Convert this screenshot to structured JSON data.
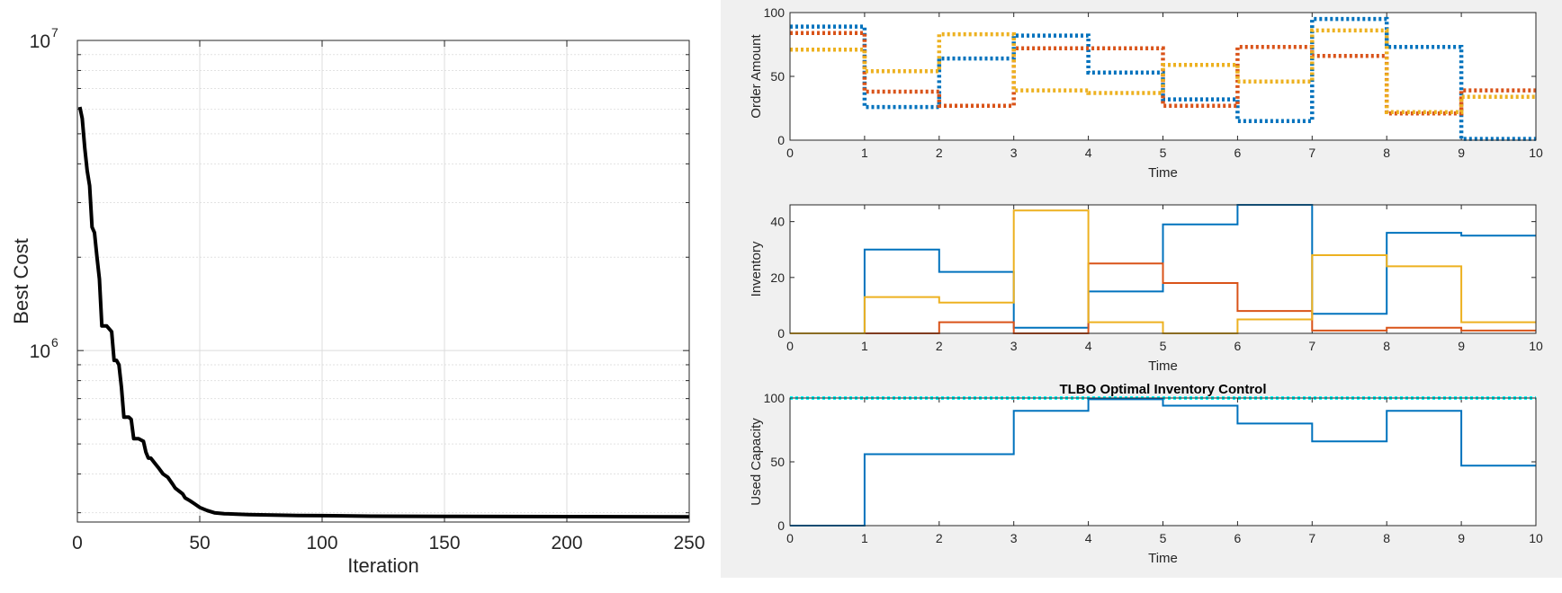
{
  "colors": {
    "blue": "#0072BD",
    "orange": "#D95319",
    "yellow": "#EDB120",
    "cyan": "#00FFFF",
    "black": "#000000",
    "figure_background": "#f0f0f0"
  },
  "chart_data": [
    {
      "type": "line",
      "title": "",
      "xlabel": "Iteration",
      "ylabel": "Best Cost",
      "xlim": [
        0,
        250
      ],
      "ylim": [
        280000,
        10000000
      ],
      "yscale": "log",
      "grid": true,
      "x_ticks": [
        "0",
        "50",
        "100",
        "150",
        "200",
        "250"
      ],
      "y_ticks": [
        {
          "base": "10",
          "exp": "6"
        },
        {
          "base": "10",
          "exp": "7"
        }
      ],
      "series": [
        {
          "color": "#000000",
          "x": [
            1,
            2,
            3,
            4,
            5,
            6,
            7,
            8,
            9,
            10,
            11,
            12,
            14,
            15,
            16,
            17,
            18,
            19,
            20,
            21,
            22,
            23,
            24,
            25,
            27,
            28,
            29,
            30,
            32,
            33,
            35,
            37,
            39,
            40,
            42,
            43,
            44,
            46,
            48,
            50,
            53,
            56,
            60,
            65,
            70,
            80,
            90,
            100,
            120,
            150,
            200,
            250
          ],
          "y": [
            6100000,
            5600000,
            4500000,
            3800000,
            3400000,
            2500000,
            2400000,
            2000000,
            1700000,
            1200000,
            1200000,
            1200000,
            1150000,
            930000,
            930000,
            900000,
            760000,
            610000,
            610000,
            610000,
            600000,
            520000,
            520000,
            520000,
            510000,
            470000,
            450000,
            450000,
            430000,
            420000,
            400000,
            390000,
            370000,
            360000,
            350000,
            345000,
            335000,
            328000,
            320000,
            312000,
            305000,
            300000,
            298000,
            297000,
            296000,
            295000,
            294000,
            293500,
            292500,
            292000,
            291500,
            291000
          ]
        }
      ]
    },
    {
      "type": "line",
      "title": "",
      "xlabel": "Time",
      "ylabel": "Order Amount",
      "xlim": [
        0,
        10
      ],
      "ylim": [
        0,
        100
      ],
      "x_ticks": [
        "0",
        "1",
        "2",
        "3",
        "4",
        "5",
        "6",
        "7",
        "8",
        "9",
        "10"
      ],
      "y_ticks": [
        "0",
        "50",
        "100"
      ],
      "style": "stairs-dotted",
      "x": [
        0,
        1,
        2,
        3,
        4,
        5,
        6,
        7,
        8,
        9,
        10
      ],
      "series": [
        {
          "color": "#0072BD",
          "values": [
            89,
            26,
            64,
            82,
            53,
            32,
            15,
            95,
            73,
            1,
            1
          ]
        },
        {
          "color": "#D95319",
          "values": [
            84,
            38,
            27,
            72,
            72,
            27,
            73,
            66,
            21,
            39,
            39
          ]
        },
        {
          "color": "#EDB120",
          "values": [
            71,
            54,
            83,
            39,
            37,
            59,
            46,
            86,
            22,
            34,
            34
          ]
        }
      ]
    },
    {
      "type": "line",
      "title": "",
      "xlabel": "Time",
      "ylabel": "Inventory",
      "xlim": [
        0,
        10
      ],
      "ylim": [
        0,
        46
      ],
      "x_ticks": [
        "0",
        "1",
        "2",
        "3",
        "4",
        "5",
        "6",
        "7",
        "8",
        "9",
        "10"
      ],
      "y_ticks": [
        "0",
        "20",
        "40"
      ],
      "style": "stairs",
      "x": [
        0,
        1,
        2,
        3,
        4,
        5,
        6,
        7,
        8,
        9,
        10
      ],
      "series": [
        {
          "color": "#0072BD",
          "values": [
            0,
            30,
            22,
            2,
            15,
            39,
            46,
            7,
            36,
            35,
            35
          ]
        },
        {
          "color": "#D95319",
          "values": [
            0,
            0,
            4,
            0,
            25,
            18,
            8,
            1,
            2,
            1,
            1
          ]
        },
        {
          "color": "#EDB120",
          "values": [
            0,
            13,
            11,
            44,
            4,
            0,
            5,
            28,
            24,
            4,
            4
          ]
        }
      ]
    },
    {
      "type": "line",
      "title": "TLBO Optimal Inventory Control",
      "xlabel": "Time",
      "ylabel": "Used Capacity",
      "xlim": [
        0,
        10
      ],
      "ylim": [
        0,
        100
      ],
      "x_ticks": [
        "0",
        "1",
        "2",
        "3",
        "4",
        "5",
        "6",
        "7",
        "8",
        "9",
        "10"
      ],
      "y_ticks": [
        "0",
        "50",
        "100"
      ],
      "style": "stairs",
      "x": [
        0,
        1,
        2,
        3,
        4,
        5,
        6,
        7,
        8,
        9,
        10
      ],
      "series": [
        {
          "color": "#0072BD",
          "values": [
            0,
            56,
            56,
            90,
            99,
            94,
            80,
            66,
            90,
            47,
            47
          ]
        }
      ],
      "reference_line": {
        "color": "#00FFFF",
        "value": 100,
        "style": "dotted"
      }
    }
  ]
}
